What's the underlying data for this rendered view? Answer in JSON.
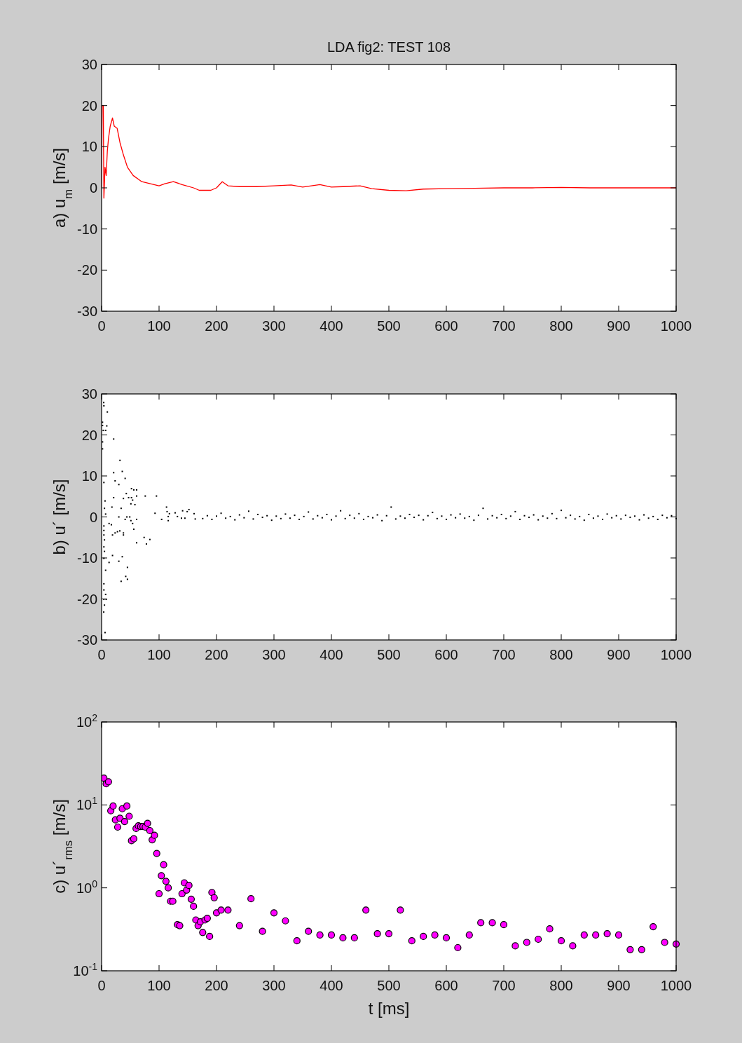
{
  "chart_data": [
    {
      "type": "line",
      "title": "LDA fig2: TEST 108",
      "ylabel": "a)  u$_{m}$  [m/s]",
      "xlim": [
        0,
        1000
      ],
      "xticks": [
        0,
        100,
        200,
        300,
        400,
        500,
        600,
        700,
        800,
        900,
        1000
      ],
      "ylim": [
        -30,
        30
      ],
      "yticks": [
        -30,
        -20,
        -10,
        0,
        10,
        20,
        30
      ],
      "series": [
        {
          "color": "#ff0000",
          "x": [
            0,
            1,
            3,
            4,
            6,
            8,
            10,
            12,
            15,
            19,
            22,
            27,
            32,
            38,
            45,
            55,
            70,
            85,
            100,
            110,
            125,
            140,
            160,
            170,
            190,
            200,
            210,
            220,
            240,
            270,
            300,
            330,
            350,
            380,
            400,
            420,
            450,
            470,
            500,
            530,
            560,
            600,
            650,
            700,
            750,
            800,
            850,
            900,
            950,
            1000
          ],
          "values": [
            0,
            20,
            20,
            -2.5,
            5,
            3,
            9,
            12,
            15,
            17,
            15,
            14.5,
            11,
            8,
            5,
            3,
            1.5,
            1,
            0.5,
            1,
            1.5,
            0.8,
            0,
            -0.6,
            -0.6,
            0,
            1.5,
            0.5,
            0.3,
            0.3,
            0.5,
            0.7,
            0.2,
            0.8,
            0.2,
            0.3,
            0.5,
            -0.2,
            -0.6,
            -0.7,
            -0.3,
            -0.2,
            -0.1,
            0,
            0,
            0.1,
            0,
            0,
            0,
            0
          ]
        }
      ]
    },
    {
      "type": "scatter",
      "marker": "square",
      "ylabel": "b)  u´  [m/s]",
      "xlim": [
        0,
        1000
      ],
      "xticks": [
        0,
        100,
        200,
        300,
        400,
        500,
        600,
        700,
        800,
        900,
        1000
      ],
      "ylim": [
        -30,
        30
      ],
      "yticks": [
        -30,
        -20,
        -10,
        0,
        10,
        20,
        30
      ],
      "series": [
        {
          "color": "#000000",
          "x": [
            3.7,
            4,
            10,
            1.6,
            1.6,
            2.9,
            9,
            7,
            1.6,
            1.6,
            21,
            32,
            36,
            21,
            23.5,
            30,
            41,
            4,
            52,
            56,
            61,
            43,
            76,
            95.5,
            21,
            38,
            47,
            52,
            61,
            54,
            51,
            58,
            6,
            18,
            34,
            5,
            30,
            44,
            49,
            7,
            13,
            41,
            51,
            61,
            54,
            56,
            17,
            4,
            19,
            23.5,
            27.6,
            31.7,
            38,
            38,
            4,
            4,
            5,
            74,
            78,
            84,
            61,
            4,
            5,
            19,
            4,
            13,
            30,
            36,
            45,
            42,
            34,
            45,
            4,
            4,
            7,
            4,
            8,
            5,
            3.7,
            6,
            7,
            93,
            104.5,
            113,
            114,
            116,
            116,
            118,
            128,
            132,
            141,
            149,
            152,
            161,
            163,
            139,
            145,
            176,
            184,
            192,
            200,
            208,
            216,
            224,
            232,
            240,
            248,
            256,
            264,
            272,
            280,
            288,
            296,
            304,
            312,
            320,
            328,
            336,
            344,
            352,
            360,
            368,
            376,
            384,
            392,
            400,
            408,
            416,
            424,
            432,
            440,
            448,
            456,
            464,
            472,
            480,
            488,
            496,
            504,
            512,
            520,
            528,
            536,
            544,
            552,
            560,
            568,
            576,
            584,
            592,
            600,
            608,
            616,
            624,
            632,
            640,
            648,
            656,
            664,
            672,
            680,
            688,
            696,
            704,
            712,
            720,
            728,
            736,
            744,
            752,
            760,
            768,
            776,
            784,
            792,
            800,
            808,
            816,
            824,
            832,
            840,
            848,
            856,
            864,
            872,
            880,
            888,
            896,
            904,
            912,
            920,
            928,
            936,
            944,
            952,
            960,
            968,
            976,
            984,
            992,
            1000
          ],
          "values": [
            27.9,
            27.1,
            25.6,
            23.1,
            22.3,
            21.1,
            22.2,
            21.1,
            18.3,
            16.6,
            19,
            13.8,
            11.1,
            10.8,
            8.8,
            7.9,
            9.4,
            8.4,
            6.9,
            6.6,
            6.6,
            5.7,
            5.1,
            5.1,
            4.7,
            4.5,
            4.7,
            4.7,
            5.1,
            4.1,
            3.2,
            3,
            3.9,
            2.4,
            2.1,
            2.1,
            0,
            0,
            0,
            0.7,
            -1.6,
            -0.6,
            -0.9,
            -0.6,
            -1.6,
            -3,
            -1.9,
            -2.2,
            -4.4,
            -3.9,
            -3.6,
            -3.4,
            -3.9,
            -4.4,
            -3.3,
            -4.4,
            -5.6,
            -5,
            -6.6,
            -5.5,
            -6.3,
            -7.3,
            -8.4,
            -9.4,
            -10.1,
            -11.1,
            -10.8,
            -9.7,
            -12.3,
            -14.5,
            -15.7,
            -15.2,
            -16.3,
            -17.8,
            -18.9,
            -20.1,
            -20.1,
            -21.5,
            -23.2,
            -28.2,
            -13,
            0.9,
            -0.6,
            2.4,
            1.3,
            0.1,
            -0.9,
            0.8,
            1,
            0.1,
            1.5,
            1.3,
            1.8,
            0.8,
            -0.5,
            -0.3,
            -0.3,
            -0.4,
            0.3,
            -0.6,
            0.2,
            0.9,
            -0.3,
            0.1,
            -0.7,
            0.5,
            -0.2,
            1.4,
            -0.5,
            0.6,
            -0.1,
            0.3,
            -0.8,
            0.2,
            -0.4,
            0.7,
            -0.3,
            0.4,
            -0.6,
            0.1,
            1.2,
            -0.5,
            0.3,
            -0.2,
            0.6,
            -0.7,
            0.2,
            1.5,
            -0.4,
            0.4,
            -0.3,
            0.8,
            -0.6,
            0.1,
            -0.2,
            0.5,
            -0.9,
            0.3,
            2.4,
            -0.5,
            0.2,
            -0.3,
            0.6,
            -0.1,
            0.4,
            -0.7,
            0.3,
            1.1,
            -0.4,
            0.2,
            -0.6,
            0.5,
            -0.2,
            0.7,
            -0.3,
            0.1,
            -0.8,
            0.4,
            2.1,
            -0.5,
            0.3,
            -0.2,
            0.6,
            -0.4,
            0.2,
            1.3,
            -0.6,
            0.3,
            -0.1,
            0.5,
            -0.7,
            0.2,
            -0.3,
            0.8,
            -0.4,
            1.6,
            -0.2,
            0.4,
            -0.5,
            0.1,
            -0.8,
            0.6,
            -0.3,
            0.2,
            -0.6,
            0.7,
            -0.2,
            0.3,
            -0.5,
            0.4,
            -0.1,
            0.2,
            -0.7,
            0.5,
            -0.3,
            0.1,
            -0.6,
            0.4,
            -0.2,
            0.3,
            -0.4
          ]
        }
      ]
    },
    {
      "type": "scatter",
      "marker": "circle",
      "log": "y",
      "xlabel": "t  [ms]",
      "ylabel": "c)  u´$_{rms}$  [m/s]",
      "xlim": [
        0,
        1000
      ],
      "xticks": [
        0,
        100,
        200,
        300,
        400,
        500,
        600,
        700,
        800,
        900,
        1000
      ],
      "ylim": [
        0.1,
        100
      ],
      "yticks": [
        {
          "value": 0.1,
          "label": "10$^{-1}$"
        },
        {
          "value": 1,
          "label": "10$^{0}$"
        },
        {
          "value": 10,
          "label": "10$^{1}$"
        },
        {
          "value": 100,
          "label": "10$^{2}$"
        }
      ],
      "series": [
        {
          "color": "#ff00ff",
          "x": [
            4,
            8,
            12,
            16,
            20,
            24,
            28,
            32,
            36,
            44,
            40,
            48,
            52,
            56,
            60,
            64,
            68,
            72,
            76,
            80,
            84,
            88,
            92,
            96,
            100,
            104,
            108,
            112,
            116,
            120,
            124,
            132,
            136,
            140,
            144,
            148,
            152,
            156,
            160,
            164,
            168,
            172,
            176,
            180,
            184,
            188,
            192,
            196,
            200,
            208,
            220,
            240,
            260,
            280,
            300,
            320,
            340,
            360,
            380,
            400,
            420,
            440,
            460,
            480,
            500,
            520,
            540,
            560,
            580,
            600,
            620,
            640,
            660,
            680,
            700,
            720,
            740,
            760,
            780,
            800,
            820,
            840,
            860,
            880,
            900,
            920,
            940,
            960,
            980,
            1000
          ],
          "values": [
            21,
            18,
            19,
            8.5,
            9.7,
            6.6,
            5.4,
            6.9,
            9,
            9.7,
            6.3,
            7.3,
            3.7,
            3.9,
            5.2,
            5.6,
            5.5,
            5.5,
            5.4,
            6,
            4.9,
            3.8,
            4.3,
            2.6,
            0.85,
            1.4,
            1.9,
            1.2,
            1,
            0.69,
            0.69,
            0.36,
            0.35,
            0.85,
            1.15,
            0.94,
            1.07,
            0.73,
            0.6,
            0.41,
            0.35,
            0.39,
            0.29,
            0.41,
            0.43,
            0.26,
            0.88,
            0.76,
            0.5,
            0.54,
            0.54,
            0.35,
            0.74,
            0.3,
            0.5,
            0.4,
            0.23,
            0.3,
            0.27,
            0.27,
            0.25,
            0.25,
            0.54,
            0.28,
            0.28,
            0.54,
            0.23,
            0.26,
            0.27,
            0.25,
            0.19,
            0.27,
            0.38,
            0.38,
            0.36,
            0.2,
            0.22,
            0.24,
            0.32,
            0.23,
            0.2,
            0.27,
            0.27,
            0.28,
            0.27,
            0.18,
            0.18,
            0.34,
            0.22,
            0.21
          ]
        }
      ]
    }
  ]
}
